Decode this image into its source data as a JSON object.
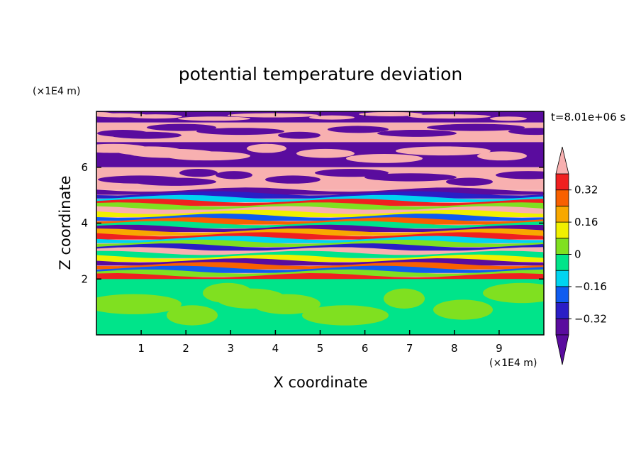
{
  "chart_data": {
    "type": "heatmap",
    "title": "potential temperature deviation",
    "xlabel": "X coordinate",
    "ylabel": "Z coordinate",
    "x_unit": "(×1E4 m)",
    "y_unit": "(×1E4 m)",
    "time_label": "t=8.01e+06 s",
    "xlim": [
      0,
      10
    ],
    "ylim": [
      0,
      8
    ],
    "x_ticks": [
      1,
      2,
      3,
      4,
      5,
      6,
      7,
      8,
      9
    ],
    "x_tick_labels": [
      "1",
      "2",
      "3",
      "4",
      "5",
      "6",
      "7",
      "8",
      "9"
    ],
    "y_ticks": [
      2,
      4,
      6
    ],
    "y_tick_labels": [
      "2",
      "4",
      "6"
    ],
    "colorbar": {
      "levels": [
        -0.4,
        -0.32,
        -0.24,
        -0.16,
        -0.08,
        0,
        0.08,
        0.16,
        0.24,
        0.32,
        0.4
      ],
      "labeled": [
        -0.32,
        -0.16,
        0,
        0.16,
        0.32
      ],
      "labels": [
        "−0.32",
        "−0.16",
        "0",
        "0.16",
        "0.32"
      ],
      "colors": [
        "#5a0c9e",
        "#2a1ec6",
        "#0f5cf0",
        "#00d4f0",
        "#00e48a",
        "#80e020",
        "#f0f000",
        "#f8a800",
        "#f86000",
        "#f02020",
        "#f8b0b0"
      ],
      "extend": "both"
    },
    "field_bands": [
      {
        "z": [
          7.6,
          8.0
        ],
        "dominant": "#5a0c9e",
        "secondary": "#f8b0b0"
      },
      {
        "z": [
          6.9,
          7.6
        ],
        "dominant": "#f8b0b0",
        "secondary": "#5a0c9e"
      },
      {
        "z": [
          6.0,
          6.9
        ],
        "dominant": "#5a0c9e",
        "secondary": "#f8b0b0"
      },
      {
        "z": [
          5.2,
          6.0
        ],
        "dominant": "#f8b0b0",
        "secondary": "#5a0c9e"
      },
      {
        "z": [
          2.0,
          5.2
        ],
        "dominant": "mixed",
        "secondary": "all"
      },
      {
        "z": [
          0.0,
          2.0
        ],
        "dominant": "#00e48a",
        "secondary": "#80e020"
      }
    ]
  }
}
